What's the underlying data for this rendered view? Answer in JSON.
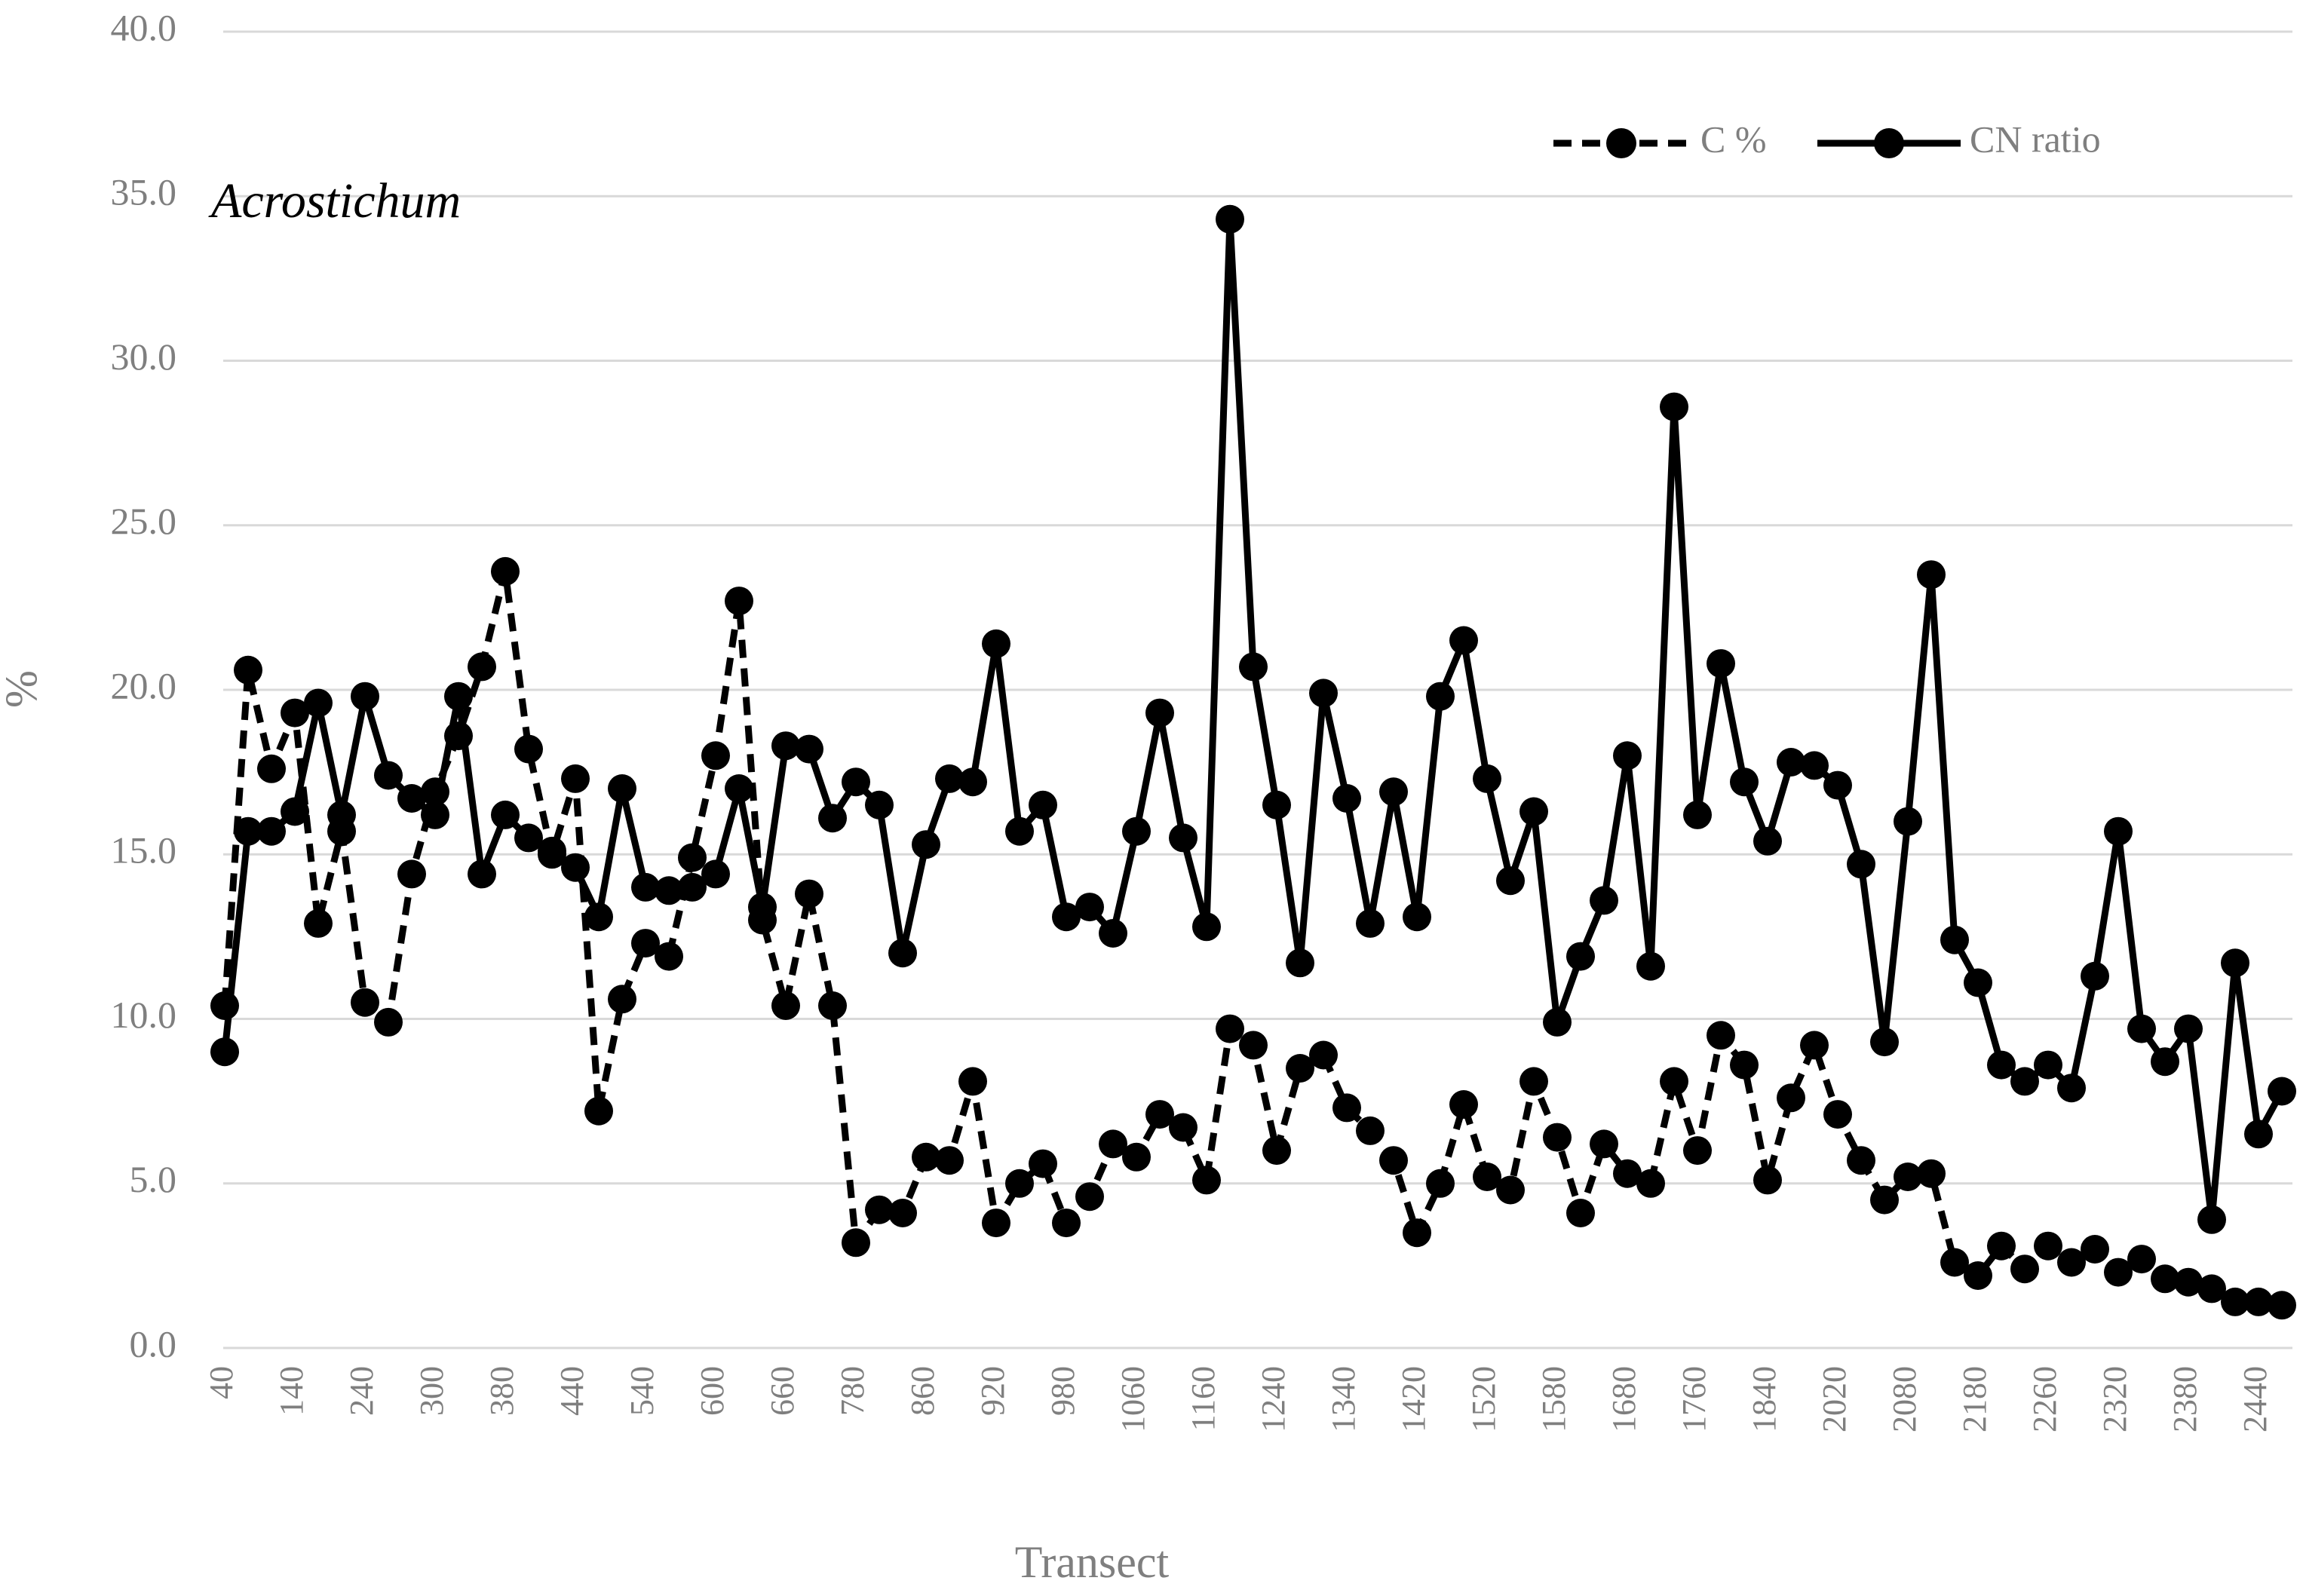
{
  "chart_data": {
    "type": "line",
    "annotation": "Acrostichum",
    "xlabel": "Transect",
    "ylabel": "%",
    "ylim": [
      0,
      40
    ],
    "yticks": [
      "0.0",
      "5.0",
      "10.0",
      "15.0",
      "20.0",
      "25.0",
      "30.0",
      "35.0",
      "40.0"
    ],
    "xtick_labels": [
      "40",
      "140",
      "240",
      "300",
      "380",
      "440",
      "540",
      "600",
      "660",
      "780",
      "860",
      "920",
      "980",
      "1060",
      "1160",
      "1240",
      "1340",
      "1420",
      "1520",
      "1580",
      "1680",
      "1760",
      "1840",
      "2020",
      "2080",
      "2180",
      "2260",
      "2320",
      "2380",
      "2440"
    ],
    "xtick_positions": [
      0,
      3,
      6,
      9,
      12,
      15,
      18,
      21,
      24,
      27,
      30,
      33,
      36,
      39,
      42,
      45,
      48,
      51,
      54,
      57,
      60,
      63,
      66,
      69,
      72,
      75,
      78,
      81,
      84,
      87
    ],
    "legend_position": "top-right",
    "grid": true,
    "series": [
      {
        "name": "C %",
        "style": "dashed",
        "color": "#000000",
        "values": [
          10.4,
          20.6,
          17.6,
          19.3,
          12.9,
          15.7,
          10.5,
          9.9,
          14.4,
          16.9,
          18.6,
          20.7,
          23.6,
          18.2,
          15.0,
          17.3,
          7.2,
          10.6,
          12.3,
          11.9,
          14.9,
          18.0,
          22.7,
          13.0,
          10.4,
          13.8,
          10.4,
          3.2,
          4.2,
          4.1,
          5.8,
          5.7,
          8.1,
          3.8,
          5.0,
          5.6,
          3.8,
          4.6,
          6.2,
          5.8,
          7.1,
          6.7,
          5.1,
          9.7,
          9.2,
          6.0,
          8.5,
          8.9,
          7.3,
          6.6,
          5.7,
          3.5,
          5.0,
          7.4,
          5.2,
          4.8,
          8.1,
          6.4,
          4.1,
          6.2,
          5.3,
          5.0,
          8.1,
          6.0,
          9.5,
          8.6,
          5.1,
          7.6,
          9.2,
          7.1,
          5.7,
          4.5,
          5.2,
          5.3,
          2.6,
          2.2,
          3.1,
          2.4,
          3.1,
          2.6,
          3.0,
          2.3,
          2.7,
          2.1,
          2.0,
          1.8,
          1.4,
          1.4,
          1.3
        ]
      },
      {
        "name": "CN ratio",
        "style": "solid",
        "color": "#000000",
        "values": [
          9.0,
          15.7,
          15.7,
          16.3,
          19.6,
          16.2,
          19.8,
          17.4,
          16.7,
          16.2,
          19.8,
          14.4,
          16.2,
          15.5,
          15.1,
          14.6,
          13.1,
          17.0,
          14.0,
          13.9,
          14.0,
          14.4,
          17.0,
          13.4,
          18.3,
          18.2,
          16.1,
          17.2,
          16.5,
          12.0,
          15.3,
          17.3,
          17.2,
          21.4,
          15.7,
          16.5,
          13.1,
          13.4,
          12.6,
          15.7,
          19.3,
          15.5,
          12.8,
          34.3,
          20.7,
          16.5,
          11.7,
          19.9,
          16.7,
          12.9,
          16.9,
          13.1,
          19.8,
          21.5,
          17.3,
          14.2,
          16.3,
          9.9,
          11.9,
          13.6,
          18.0,
          11.6,
          28.6,
          16.2,
          20.8,
          17.2,
          15.4,
          17.8,
          17.7,
          17.1,
          14.7,
          9.3,
          16.0,
          23.5,
          12.4,
          11.1,
          8.6,
          8.1,
          8.6,
          7.9,
          11.3,
          15.7,
          9.7,
          8.7,
          9.7,
          3.9,
          11.7,
          6.5,
          7.8
        ]
      }
    ]
  }
}
